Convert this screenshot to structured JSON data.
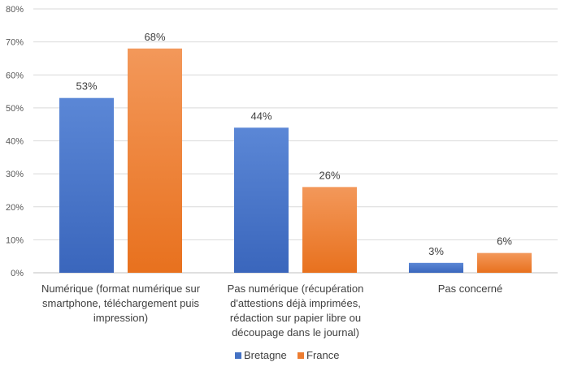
{
  "chart_data": {
    "type": "bar",
    "categories": [
      [
        "Numérique (format numérique sur",
        "smartphone, téléchargement puis",
        "impression)"
      ],
      [
        "Pas numérique (récupération",
        "d'attestions déjà imprimées,",
        "rédaction sur papier libre ou",
        "découpage dans le journal)"
      ],
      [
        "Pas concerné"
      ]
    ],
    "series": [
      {
        "name": "Bretagne",
        "values": [
          53,
          44,
          3
        ],
        "labels": [
          "53%",
          "44%",
          "3%"
        ],
        "color": "#4472C4"
      },
      {
        "name": "France",
        "values": [
          68,
          26,
          6
        ],
        "labels": [
          "68%",
          "26%",
          "6%"
        ],
        "color": "#ED7D31"
      }
    ],
    "ylim": [
      0,
      80
    ],
    "yticks": [
      "0%",
      "10%",
      "20%",
      "30%",
      "40%",
      "50%",
      "60%",
      "70%",
      "80%"
    ],
    "grid": true,
    "legend": "bottom-center"
  }
}
